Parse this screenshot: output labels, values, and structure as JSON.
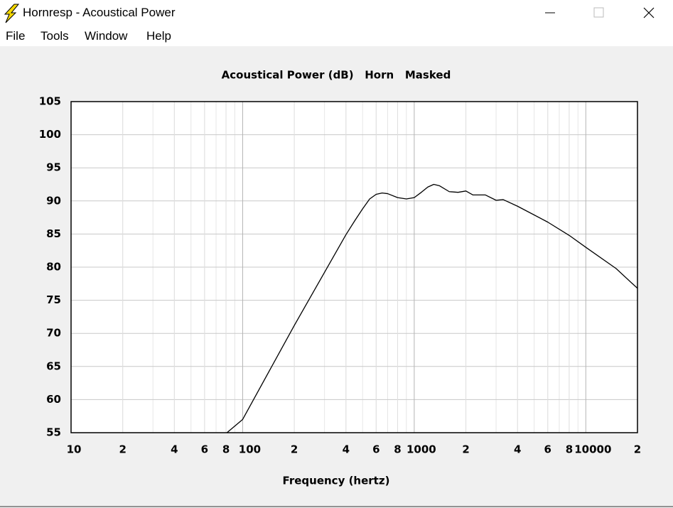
{
  "window": {
    "title": "Hornresp - Acoustical Power",
    "menu": [
      "File",
      "Tools",
      "Window",
      "Help"
    ]
  },
  "chart_data": {
    "type": "line",
    "title": "Acoustical Power (dB)   Horn   Masked",
    "x_label": "Frequency (hertz)",
    "x_scale": "log",
    "grid": true,
    "minor_grid": true,
    "color": "#000000",
    "xlim": [
      10,
      20000
    ],
    "ylim": [
      55,
      105
    ],
    "xticks": [
      10,
      {
        "value": 20,
        "label": "2"
      },
      {
        "value": 40,
        "label": "4"
      },
      {
        "value": 60,
        "label": "6"
      },
      {
        "value": 80,
        "label": "8"
      },
      100,
      {
        "value": 200,
        "label": "2"
      },
      {
        "value": 400,
        "label": "4"
      },
      {
        "value": 600,
        "label": "6"
      },
      {
        "value": 800,
        "label": "8"
      },
      1000,
      {
        "value": 2000,
        "label": "2"
      },
      {
        "value": 4000,
        "label": "4"
      },
      {
        "value": 6000,
        "label": "6"
      },
      {
        "value": 8000,
        "label": "8"
      },
      10000,
      {
        "value": 20000,
        "label": "2"
      }
    ],
    "yticks": [
      55,
      60,
      65,
      70,
      75,
      80,
      85,
      90,
      95,
      100,
      105
    ],
    "x": [
      81,
      100,
      200,
      400,
      450,
      500,
      550,
      600,
      650,
      700,
      800,
      900,
      1000,
      1100,
      1200,
      1300,
      1400,
      1600,
      1800,
      2000,
      2200,
      2600,
      3000,
      3300,
      4000,
      6000,
      8000,
      10000,
      15000,
      20000
    ],
    "values": [
      55,
      57,
      71.2,
      84.9,
      87,
      88.8,
      90.3,
      91,
      91.2,
      91.1,
      90.5,
      90.3,
      90.5,
      91.3,
      92.1,
      92.5,
      92.3,
      91.4,
      91.3,
      91.5,
      90.9,
      90.9,
      90.1,
      90.2,
      89.2,
      86.8,
      84.8,
      83,
      79.8,
      76.8
    ]
  }
}
